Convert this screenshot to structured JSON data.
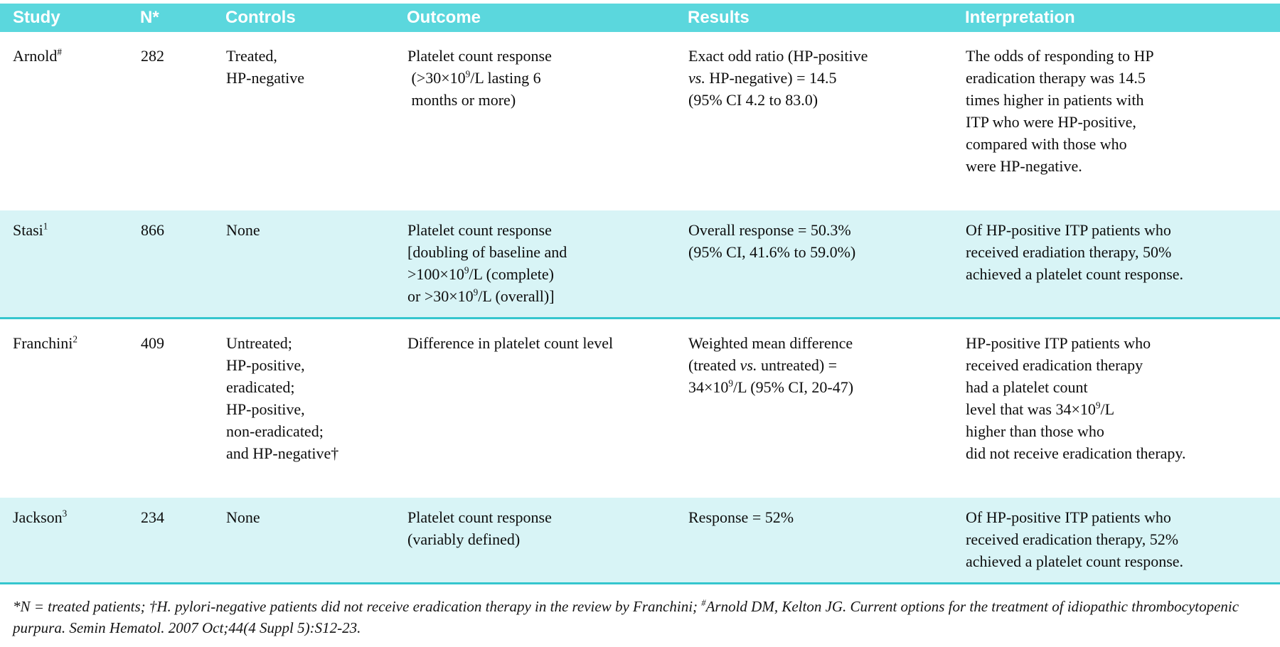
{
  "colors": {
    "header_bg": "#5bd7dd",
    "row_alt_bg": "#d8f4f6",
    "row_divider": "#35c6ce",
    "header_text": "#ffffff",
    "body_text": "#0d0d0d"
  },
  "table": {
    "columns": [
      {
        "key": "study",
        "label": "Study"
      },
      {
        "key": "n",
        "label": "N*"
      },
      {
        "key": "controls",
        "label": "Controls"
      },
      {
        "key": "outcome",
        "label": "Outcome"
      },
      {
        "key": "results",
        "label": "Results"
      },
      {
        "key": "interpretation",
        "label": "Interpretation"
      }
    ],
    "rows": [
      {
        "highlight": false,
        "study": [
          "Arnold{sup}#{/sup}"
        ],
        "n": [
          "282"
        ],
        "controls": [
          "Treated,",
          "HP-negative"
        ],
        "outcome": [
          "Platelet count response",
          " (>30×10{sup}9{/sup}/L lasting 6",
          " months or more)"
        ],
        "results": [
          "Exact odd ratio (HP-positive",
          "{i}vs.{/i} HP-negative) = 14.5",
          "(95% CI 4.2 to 83.0)"
        ],
        "interpretation": [
          "The odds of responding to HP",
          "eradication therapy was 14.5",
          "times higher in patients with",
          "ITP who were HP-positive,",
          "compared with those who",
          "were HP-negative."
        ]
      },
      {
        "highlight": true,
        "study": [
          "Stasi{sup}1{/sup}"
        ],
        "n": [
          "866"
        ],
        "controls": [
          "None"
        ],
        "outcome": [
          "Platelet count response",
          "[doubling of baseline and",
          ">100×10{sup}9{/sup}/L (complete)",
          "or >30×10{sup}9{/sup}/L (overall)]"
        ],
        "results": [
          "Overall response = 50.3%",
          "(95% CI, 41.6% to 59.0%)"
        ],
        "interpretation": [
          "Of HP-positive ITP patients who",
          "received eradiation therapy, 50%",
          "achieved a platelet count response."
        ]
      },
      {
        "highlight": false,
        "study": [
          "Franchini{sup}2{/sup}"
        ],
        "n": [
          "409"
        ],
        "controls": [
          "Untreated;",
          "HP-positive,",
          "eradicated;",
          "HP-positive,",
          "non-eradicated;",
          "and HP-negative†"
        ],
        "outcome": [
          "Difference in platelet count level"
        ],
        "results": [
          "Weighted mean difference",
          "(treated {i}vs.{/i} untreated) =",
          "34×10{sup}9{/sup}/L (95% CI, 20-47)"
        ],
        "interpretation": [
          "HP-positive ITP patients who",
          "received eradication therapy",
          "had a platelet count",
          "level that was 34×10{sup}9{/sup}/L",
          "higher than those who",
          "did not receive eradication therapy."
        ]
      },
      {
        "highlight": true,
        "study": [
          "Jackson{sup}3{/sup}"
        ],
        "n": [
          "234"
        ],
        "controls": [
          "None"
        ],
        "outcome": [
          "Platelet count response",
          "(variably defined)"
        ],
        "results": [
          "Response = 52%"
        ],
        "interpretation": [
          "Of HP-positive ITP patients who",
          "received eradication therapy, 52%",
          "achieved a platelet count response."
        ]
      }
    ]
  },
  "footnote": {
    "text": "*N = treated patients; †H. pylori-negative patients did not receive eradication therapy in the review by Franchini; {sup}#{/sup}Arnold DM, Kelton JG. Current options for the treatment of idiopathic thrombocytopenic purpura. Semin Hematol. 2007 Oct;44(4 Suppl 5):S12-23."
  }
}
